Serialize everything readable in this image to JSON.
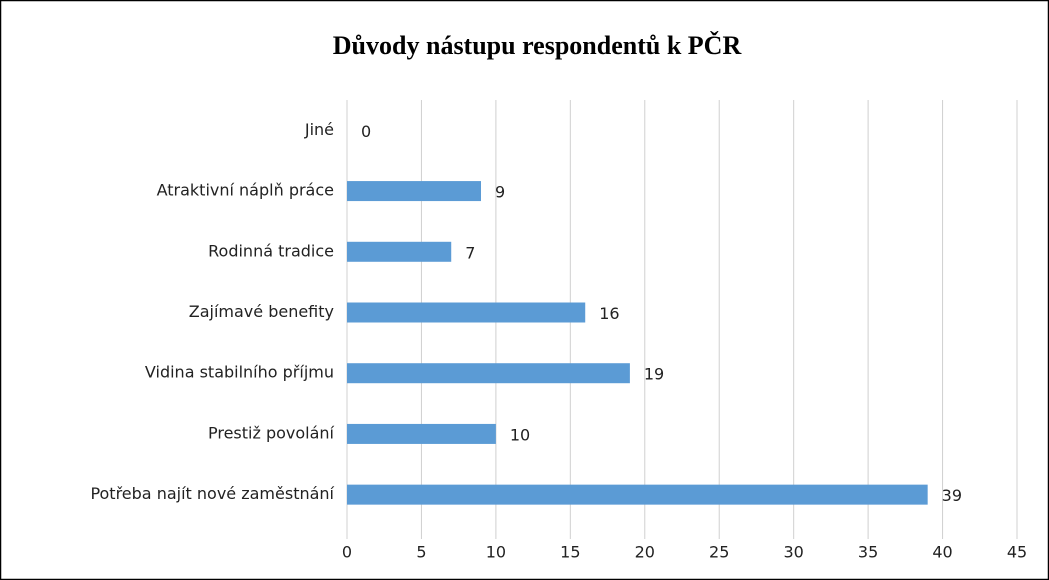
{
  "chart_data": {
    "type": "bar",
    "orientation": "horizontal",
    "title": "Důvody nástupu respondentů k PČR",
    "categories": [
      "Jiné",
      "Atraktivní náplň práce",
      "Rodinná tradice",
      "Zajímavé benefity",
      "Vidina stabilního příjmu",
      "Prestiž povolání",
      "Potřeba najít nové zaměstnání"
    ],
    "values": [
      0,
      9,
      7,
      16,
      19,
      10,
      39
    ],
    "color": "#5b9bd5",
    "xlim": [
      0,
      45
    ],
    "xticks": [
      0,
      5,
      10,
      15,
      20,
      25,
      30,
      35,
      40,
      45
    ],
    "grid": true
  }
}
